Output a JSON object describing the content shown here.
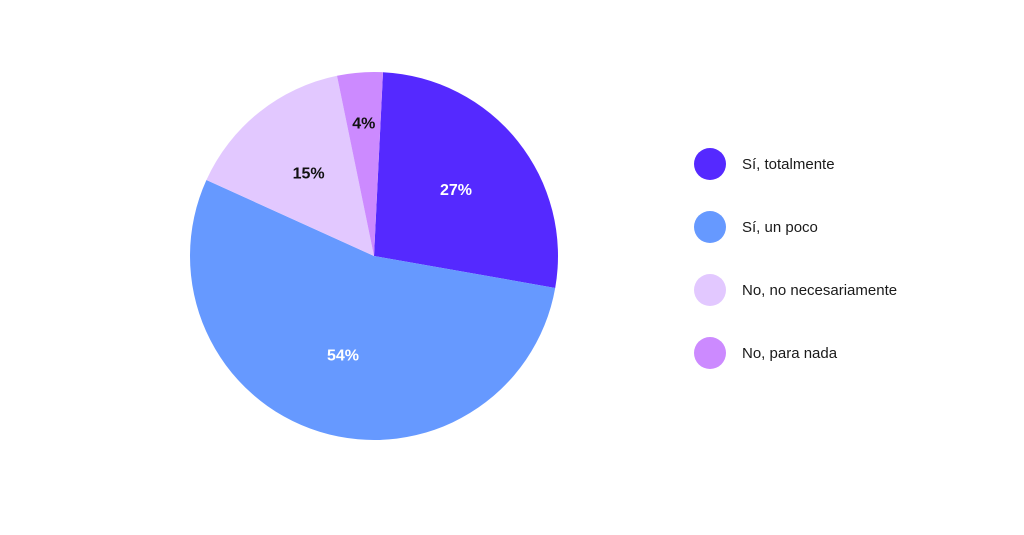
{
  "chart_data": {
    "type": "pie",
    "slices": [
      {
        "label": "Sí, totalmente",
        "value": 27,
        "display": "27%",
        "color": "#5529ff",
        "label_color": "#ffffff"
      },
      {
        "label": "Sí, un poco",
        "value": 54,
        "display": "54%",
        "color": "#6699ff",
        "label_color": "#ffffff"
      },
      {
        "label": "No, no necesariamente",
        "value": 15,
        "display": "15%",
        "color": "#e2c8ff",
        "label_color": "#111111"
      },
      {
        "label": "No, para nada",
        "value": 4,
        "display": "4%",
        "color": "#cc8aff",
        "label_color": "#111111"
      }
    ],
    "legend_position": "right"
  }
}
